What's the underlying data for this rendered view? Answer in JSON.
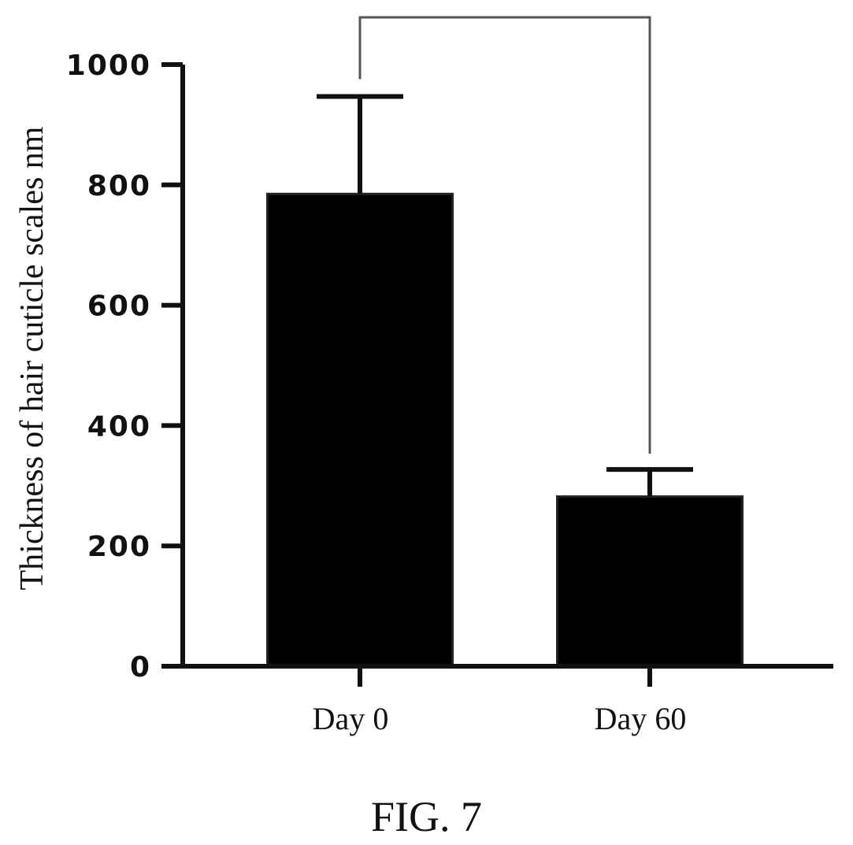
{
  "chart_data": {
    "type": "bar",
    "title": "",
    "categories": [
      "Day 0",
      "Day 60"
    ],
    "values": [
      785,
      282
    ],
    "error_upper": [
      947,
      327
    ],
    "ylabel": "Thickness of hair cuticle scales nm",
    "xlabel": "",
    "ylim": [
      0,
      1000
    ],
    "yticks": [
      0,
      200,
      400,
      600,
      800,
      1000
    ],
    "grid": false,
    "legend": "none",
    "bar_color": "#000000",
    "significance_bracket": {
      "from": "Day 0",
      "to": "Day 60",
      "label": ""
    }
  },
  "figure": {
    "caption": "FIG. 7"
  }
}
